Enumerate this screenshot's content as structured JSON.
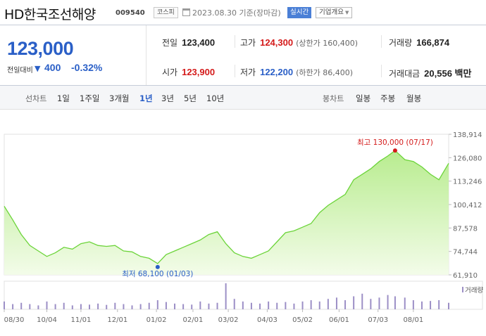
{
  "header": {
    "name": "HD한국조선해양",
    "code": "009540",
    "market": "코스피",
    "date_text": "2023.08.30  기준(장마감)",
    "live_button": "실시간",
    "info_button": "기업개요"
  },
  "quote": {
    "price": "123,000",
    "change_label": "전일대비",
    "change_arrow": "▼",
    "change_value": "400",
    "change_rate": "-0.32%",
    "prev_label": "전일",
    "prev_value": "123,400",
    "high_label": "고가",
    "high_value": "124,300",
    "upper_limit": "(상한가 160,400)",
    "volume_label": "거래량",
    "volume_value": "166,874",
    "open_label": "시가",
    "open_value": "123,900",
    "low_label": "저가",
    "low_value": "122,200",
    "lower_limit": "(하한가 86,400)",
    "amount_label": "거래대금",
    "amount_value": "20,556 백만"
  },
  "periods": {
    "line_label": "선차트",
    "line_items": [
      "1일",
      "1주일",
      "3개월",
      "1년",
      "3년",
      "5년",
      "10년"
    ],
    "active": "1년",
    "candle_label": "봉차트",
    "candle_items": [
      "일봉",
      "주봉",
      "월봉"
    ]
  },
  "colors": {
    "line": "#6cd43a",
    "fill_top": "#b8ec8f",
    "fill_bottom": "#f3fce9",
    "up": "#d41a1a",
    "down": "#2a5fc7",
    "volume": "#9c8fc6"
  },
  "chart_data": {
    "type": "area",
    "ylim": [
      61910,
      138914
    ],
    "y_ticks": [
      "138,914",
      "126,080",
      "113,246",
      "100,412",
      "87,578",
      "74,744",
      "61,910"
    ],
    "x_ticks": [
      "08/30",
      "10/04",
      "11/01",
      "12/01",
      "01/02",
      "02/01",
      "03/02",
      "04/03",
      "05/02",
      "06/01",
      "07/03",
      "08/01"
    ],
    "high_annotation": "최고 130,000 (07/17)",
    "low_annotation": "최저 68,100 (01/03)",
    "high_value": 130000,
    "low_value": 68100,
    "volume_legend": "거래량",
    "x": [
      "2022-08-30",
      "2022-09-06",
      "2022-09-13",
      "2022-09-20",
      "2022-09-27",
      "2022-10-04",
      "2022-10-11",
      "2022-10-18",
      "2022-10-25",
      "2022-11-01",
      "2022-11-08",
      "2022-11-15",
      "2022-11-22",
      "2022-11-29",
      "2022-12-06",
      "2022-12-13",
      "2022-12-20",
      "2022-12-27",
      "2023-01-03",
      "2023-01-10",
      "2023-01-17",
      "2023-01-24",
      "2023-01-31",
      "2023-02-07",
      "2023-02-14",
      "2023-02-21",
      "2023-02-28",
      "2023-03-07",
      "2023-03-14",
      "2023-03-21",
      "2023-03-28",
      "2023-04-04",
      "2023-04-11",
      "2023-04-18",
      "2023-04-25",
      "2023-05-02",
      "2023-05-09",
      "2023-05-16",
      "2023-05-23",
      "2023-05-30",
      "2023-06-06",
      "2023-06-13",
      "2023-06-20",
      "2023-06-27",
      "2023-07-04",
      "2023-07-11",
      "2023-07-17",
      "2023-07-25",
      "2023-08-01",
      "2023-08-08",
      "2023-08-15",
      "2023-08-22",
      "2023-08-30"
    ],
    "values": [
      99500,
      92000,
      84000,
      78000,
      75000,
      72000,
      74000,
      77000,
      76000,
      79000,
      80000,
      78000,
      77500,
      78000,
      75000,
      74500,
      72000,
      71000,
      68100,
      73000,
      75000,
      77000,
      79000,
      81000,
      84000,
      85500,
      79000,
      74000,
      72000,
      71000,
      73000,
      75000,
      80000,
      85000,
      86000,
      88000,
      90000,
      96000,
      100000,
      103000,
      106000,
      114000,
      117000,
      120000,
      124000,
      127000,
      130000,
      125000,
      124000,
      121000,
      117000,
      114000,
      123000
    ],
    "volume_scale": "relative",
    "volume": [
      0.3,
      0.2,
      0.25,
      0.2,
      0.15,
      0.3,
      0.2,
      0.25,
      0.15,
      0.2,
      0.18,
      0.22,
      0.17,
      0.25,
      0.2,
      0.15,
      0.2,
      0.25,
      0.35,
      0.28,
      0.22,
      0.2,
      0.18,
      0.3,
      0.22,
      0.25,
      1.0,
      0.4,
      0.3,
      0.25,
      0.22,
      0.3,
      0.25,
      0.28,
      0.22,
      0.3,
      0.35,
      0.3,
      0.4,
      0.45,
      0.35,
      0.5,
      0.6,
      0.4,
      0.45,
      0.55,
      0.5,
      0.45,
      0.35,
      0.3,
      0.32,
      0.35,
      0.25
    ]
  }
}
